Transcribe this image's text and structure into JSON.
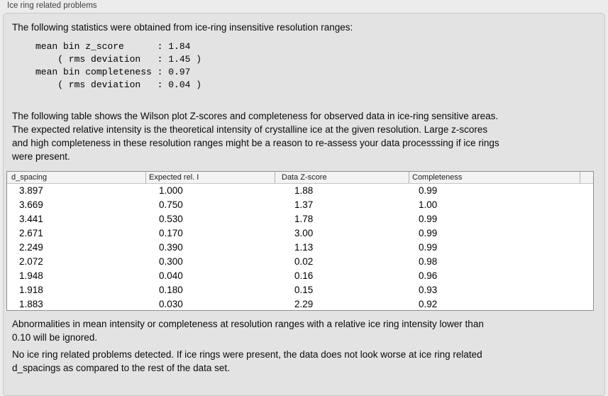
{
  "panel": {
    "title": "Ice ring related problems"
  },
  "intro_text": "The following statistics were obtained from ice-ring insensitive resolution ranges:",
  "stats_block": {
    "lines": [
      "mean bin z_score      : 1.84",
      "    ( rms deviation   : 1.45 )",
      "mean bin completeness : 0.97",
      "    ( rms deviation   : 0.04 )"
    ],
    "mean_bin_z_score": "1.84",
    "z_score_rms_deviation": "1.45",
    "mean_bin_completeness": "0.97",
    "completeness_rms_deviation": "0.04"
  },
  "description": {
    "lines": [
      "The following table shows the Wilson plot Z-scores and completeness for observed data in ice-ring sensitive areas.",
      "The expected relative intensity is the theoretical intensity of crystalline ice at the given resolution. Large z-scores",
      "and high completeness in these resolution ranges might be a reason to re-assess your data processsing if ice rings",
      "were present."
    ]
  },
  "table": {
    "columns": [
      "d_spacing",
      "Expected rel. I",
      "Data Z-score",
      "Completeness"
    ],
    "rows": [
      [
        "3.897",
        "1.000",
        "1.88",
        "0.99"
      ],
      [
        "3.669",
        "0.750",
        "1.37",
        "1.00"
      ],
      [
        "3.441",
        "0.530",
        "1.78",
        "0.99"
      ],
      [
        "2.671",
        "0.170",
        "3.00",
        "0.99"
      ],
      [
        "2.249",
        "0.390",
        "1.13",
        "0.99"
      ],
      [
        "2.072",
        "0.300",
        "0.02",
        "0.98"
      ],
      [
        "1.948",
        "0.040",
        "0.16",
        "0.96"
      ],
      [
        "1.918",
        "0.180",
        "0.15",
        "0.93"
      ],
      [
        "1.883",
        "0.030",
        "2.29",
        "0.92"
      ]
    ]
  },
  "notes": {
    "ignore_rule": {
      "lines": [
        "Abnormalities in mean intensity or completeness at resolution ranges with a relative ice ring intensity lower than",
        "0.10 will be ignored."
      ]
    },
    "conclusion": {
      "lines": [
        "No ice ring related problems detected. If ice rings were present, the data does not look worse at ice ring related",
        "d_spacings as compared to the rest of the data set."
      ]
    }
  },
  "colors": {
    "panel_background": "#e3e3e3",
    "page_background": "#ececec",
    "table_header_background": "#f3f3f3",
    "table_border": "#8f8f8f"
  }
}
